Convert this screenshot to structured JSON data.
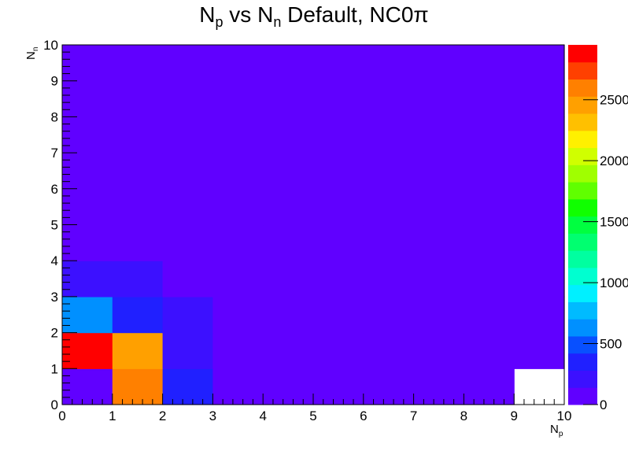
{
  "chart_data": {
    "type": "heatmap",
    "title": {
      "base1": "N",
      "sub1": "p",
      "mid": " vs N",
      "sub2": "n",
      "rest": " Default, NC0π"
    },
    "xlabel": {
      "base": "N",
      "sub": "p"
    },
    "ylabel": {
      "base": "N",
      "sub": "n"
    },
    "xlim": [
      0,
      10
    ],
    "ylim": [
      0,
      10
    ],
    "x_ticks": [
      "0",
      "1",
      "2",
      "3",
      "4",
      "5",
      "6",
      "7",
      "8",
      "9",
      "10"
    ],
    "y_ticks": [
      "0",
      "1",
      "2",
      "3",
      "4",
      "5",
      "6",
      "7",
      "8",
      "9",
      "10"
    ],
    "zlim": [
      0,
      2950
    ],
    "z_ticks": [
      {
        "value": 0,
        "label": "0"
      },
      {
        "value": 500,
        "label": "500"
      },
      {
        "value": 1000,
        "label": "1000"
      },
      {
        "value": 1500,
        "label": "1500"
      },
      {
        "value": 2000,
        "label": "2000"
      },
      {
        "value": 2500,
        "label": "2500"
      }
    ],
    "palette": [
      "#6000ff",
      "#3c10ff",
      "#2020ff",
      "#0850ff",
      "#0090ff",
      "#00bbff",
      "#00f0ff",
      "#00ffd0",
      "#00ffa0",
      "#00ff70",
      "#00ff40",
      "#10ff00",
      "#60ff00",
      "#a0ff00",
      "#d0ff00",
      "#fff000",
      "#ffc000",
      "#ffa000",
      "#ff8000",
      "#ff4000",
      "#ff0000"
    ],
    "cells": [
      {
        "x": 0,
        "y": 0,
        "value": 50
      },
      {
        "x": 1,
        "y": 0,
        "value": 2650
      },
      {
        "x": 2,
        "y": 0,
        "value": 400
      },
      {
        "x": 0,
        "y": 1,
        "value": 2900
      },
      {
        "x": 1,
        "y": 1,
        "value": 2500
      },
      {
        "x": 2,
        "y": 1,
        "value": 200
      },
      {
        "x": 0,
        "y": 2,
        "value": 650
      },
      {
        "x": 1,
        "y": 2,
        "value": 400
      },
      {
        "x": 2,
        "y": 2,
        "value": 200
      },
      {
        "x": 0,
        "y": 3,
        "value": 200
      },
      {
        "x": 1,
        "y": 3,
        "value": 200
      }
    ],
    "background_value": 0,
    "empty_cells": [
      {
        "x": 9,
        "y": 0
      }
    ],
    "legend": "color scale at right"
  }
}
